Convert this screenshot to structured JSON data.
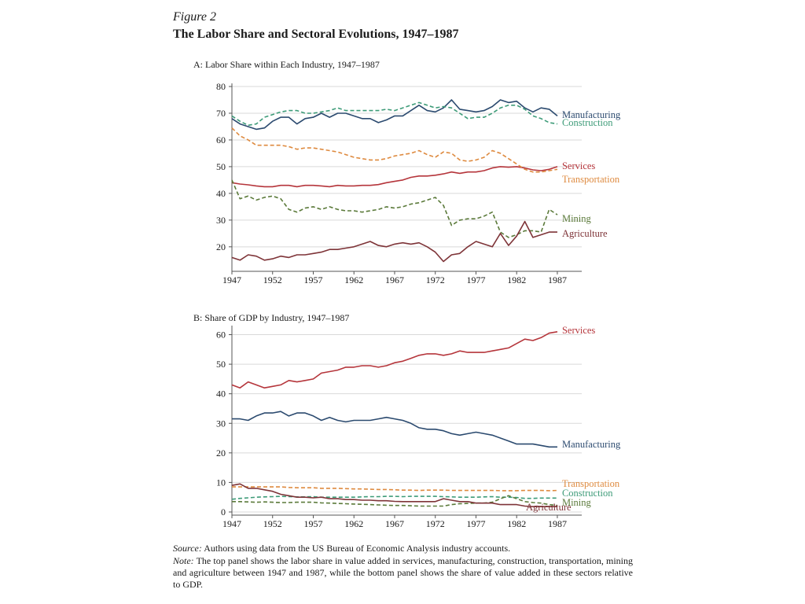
{
  "figure_label": "Figure 2",
  "figure_title": "The Labor Share and Sectoral Evolutions, 1947–1987",
  "source": {
    "label": "Source:",
    "text": " Authors using data from the US Bureau of Economic Analysis industry accounts."
  },
  "note": {
    "label": "Note:",
    "text": " The top panel shows the labor share in value added in services, manufacturing, construction, transportation, mining and agriculture between 1947 and 1987, while the bottom panel shows the share of value added in these sectors relative to GDP."
  },
  "colors": {
    "manufacturing": "#2b4a6f",
    "construction": "#3d9b78",
    "services": "#b5353b",
    "transportation": "#de8a3f",
    "mining": "#5b7a3a",
    "agriculture": "#7e3438",
    "axis": "#555555",
    "grid": "#d9d9d9"
  },
  "chart_data": [
    {
      "type": "line",
      "title": "A: Labor Share within Each Industry, 1947–1987",
      "xlabel": "",
      "ylabel": "",
      "xlim": [
        1947,
        1990
      ],
      "ylim": [
        12,
        80
      ],
      "xticks": [
        1947,
        1952,
        1957,
        1962,
        1967,
        1972,
        1977,
        1982,
        1987
      ],
      "yticks": [
        20,
        30,
        40,
        50,
        60,
        70,
        80
      ],
      "grid": "horizontal",
      "x": [
        1947,
        1948,
        1949,
        1950,
        1951,
        1952,
        1953,
        1954,
        1955,
        1956,
        1957,
        1958,
        1959,
        1960,
        1961,
        1962,
        1963,
        1964,
        1965,
        1966,
        1967,
        1968,
        1969,
        1970,
        1971,
        1972,
        1973,
        1974,
        1975,
        1976,
        1977,
        1978,
        1979,
        1980,
        1981,
        1982,
        1983,
        1984,
        1985,
        1986,
        1987
      ],
      "series": [
        {
          "name": "Manufacturing",
          "key": "manufacturing",
          "dash": false,
          "values": [
            68,
            66,
            65,
            64,
            64.5,
            67,
            68.5,
            68.5,
            66,
            68,
            68.5,
            70,
            68.5,
            70,
            70,
            69,
            68,
            68,
            66.5,
            67.5,
            69,
            69,
            71,
            73,
            71,
            70.5,
            72,
            75,
            71.5,
            71,
            70.5,
            71,
            72.5,
            75,
            74,
            74.5,
            72,
            70.5,
            72,
            71.5,
            69
          ]
        },
        {
          "name": "Construction",
          "key": "construction",
          "dash": true,
          "values": [
            69,
            67,
            65.5,
            66,
            68.5,
            69.5,
            70.5,
            71,
            71,
            70,
            70,
            70.5,
            71,
            72,
            71,
            71,
            71,
            71,
            71,
            71.5,
            71,
            72,
            73,
            74,
            73,
            72,
            72.5,
            72,
            70,
            68,
            68.5,
            68.5,
            70,
            72,
            73,
            73,
            71.5,
            69,
            68,
            66.5,
            66
          ]
        },
        {
          "name": "Services",
          "key": "services",
          "dash": false,
          "values": [
            44,
            43.5,
            43.2,
            42.8,
            42.5,
            42.5,
            43,
            43,
            42.5,
            43,
            43,
            42.8,
            42.5,
            43,
            42.8,
            42.8,
            43,
            43,
            43.3,
            44,
            44.5,
            45,
            46,
            46.5,
            46.5,
            46.8,
            47.3,
            48,
            47.5,
            48,
            48,
            48.5,
            49.5,
            50,
            49.8,
            50,
            49.5,
            48.8,
            48.5,
            49,
            50
          ]
        },
        {
          "name": "Transportation",
          "key": "transportation",
          "dash": true,
          "values": [
            64.5,
            61.5,
            60,
            58,
            58,
            58,
            58,
            57.5,
            56.5,
            57,
            57,
            56.5,
            56,
            55.5,
            54.5,
            53.5,
            53,
            52.5,
            52.5,
            53,
            54,
            54.5,
            55,
            56,
            54.5,
            53.5,
            55.5,
            55,
            52.5,
            52,
            52.5,
            53.5,
            56,
            55,
            53,
            51,
            49,
            48,
            48,
            48.5,
            49
          ]
        },
        {
          "name": "Mining",
          "key": "mining",
          "dash": true,
          "values": [
            45,
            38,
            39,
            37.5,
            38.5,
            39,
            38,
            34,
            33,
            34.5,
            35,
            34,
            35,
            34,
            33.5,
            33.5,
            33,
            33.5,
            34,
            35,
            34.5,
            35,
            36,
            36.5,
            37.5,
            38.5,
            35.5,
            28,
            30,
            30.5,
            30.5,
            31.5,
            33,
            25.5,
            23.5,
            24.5,
            26,
            26,
            25.5,
            34,
            32
          ]
        },
        {
          "name": "Agriculture",
          "key": "agriculture",
          "dash": false,
          "values": [
            16,
            15,
            17,
            16.5,
            15,
            15.5,
            16.5,
            16,
            17,
            17,
            17.5,
            18,
            19,
            19,
            19.5,
            20,
            21,
            22,
            20.5,
            20,
            21,
            21.5,
            21,
            21.5,
            20,
            18,
            14.5,
            17,
            17.5,
            20,
            22,
            21,
            20,
            25,
            20.5,
            24,
            29.5,
            23.5,
            24.5,
            25.5,
            25.5
          ]
        }
      ]
    },
    {
      "type": "line",
      "title": "B: Share of GDP by Industry, 1947–1987",
      "xlabel": "",
      "ylabel": "",
      "xlim": [
        1947,
        1990
      ],
      "ylim": [
        0,
        62
      ],
      "xticks": [
        1947,
        1952,
        1957,
        1962,
        1967,
        1972,
        1977,
        1982,
        1987
      ],
      "yticks": [
        0,
        10,
        20,
        30,
        40,
        50,
        60
      ],
      "grid": "horizontal",
      "x": [
        1947,
        1948,
        1949,
        1950,
        1951,
        1952,
        1953,
        1954,
        1955,
        1956,
        1957,
        1958,
        1959,
        1960,
        1961,
        1962,
        1963,
        1964,
        1965,
        1966,
        1967,
        1968,
        1969,
        1970,
        1971,
        1972,
        1973,
        1974,
        1975,
        1976,
        1977,
        1978,
        1979,
        1980,
        1981,
        1982,
        1983,
        1984,
        1985,
        1986,
        1987
      ],
      "series": [
        {
          "name": "Services",
          "key": "services",
          "dash": false,
          "values": [
            43,
            42,
            44,
            43,
            42,
            42.5,
            43,
            44.5,
            44,
            44.5,
            45,
            47,
            47.5,
            48,
            49,
            49,
            49.5,
            49.5,
            49,
            49.5,
            50.5,
            51,
            52,
            53,
            53.5,
            53.5,
            53,
            53.5,
            54.5,
            54,
            54,
            54,
            54.5,
            55,
            55.5,
            57,
            58.5,
            58,
            59,
            60.5,
            61
          ]
        },
        {
          "name": "Manufacturing",
          "key": "manufacturing",
          "dash": false,
          "values": [
            31.5,
            31.5,
            31,
            32.5,
            33.5,
            33.5,
            34,
            32.5,
            33.5,
            33.5,
            32.5,
            31,
            32,
            31,
            30.5,
            31,
            31,
            31,
            31.5,
            32,
            31.5,
            31,
            30,
            28.5,
            28,
            28,
            27.5,
            26.5,
            26,
            26.5,
            27,
            26.5,
            26,
            25,
            24,
            23,
            23,
            23,
            22.5,
            22,
            22
          ]
        },
        {
          "name": "Transportation",
          "key": "transportation",
          "dash": true,
          "values": [
            8.5,
            8.5,
            8.5,
            8.5,
            8.5,
            8.5,
            8.5,
            8.3,
            8.2,
            8.2,
            8.2,
            8,
            8,
            8,
            7.9,
            7.8,
            7.8,
            7.7,
            7.6,
            7.6,
            7.5,
            7.4,
            7.4,
            7.3,
            7.4,
            7.4,
            7.4,
            7.3,
            7.3,
            7.3,
            7.3,
            7.3,
            7.3,
            7.2,
            7.2,
            7.2,
            7.3,
            7.3,
            7.3,
            7.2,
            7.3
          ]
        },
        {
          "name": "Construction",
          "key": "construction",
          "dash": true,
          "values": [
            4.3,
            4.6,
            4.8,
            5,
            5.1,
            5.2,
            5.3,
            5.2,
            5.1,
            5.1,
            5.2,
            5,
            5,
            5,
            5,
            5,
            5.1,
            5.2,
            5.2,
            5.3,
            5.3,
            5.2,
            5.3,
            5.3,
            5.3,
            5.3,
            5.2,
            5.1,
            5,
            5,
            5,
            5.1,
            5.2,
            5,
            5,
            4.9,
            4.6,
            4.6,
            4.7,
            4.7,
            4.7
          ]
        },
        {
          "name": "Mining",
          "key": "mining",
          "dash": true,
          "values": [
            3.5,
            3.5,
            3.4,
            3.3,
            3.4,
            3.3,
            3.2,
            3.2,
            3.3,
            3.3,
            3.3,
            3.1,
            3,
            2.9,
            2.8,
            2.7,
            2.6,
            2.5,
            2.4,
            2.3,
            2.2,
            2.2,
            2.1,
            2,
            2,
            2,
            2,
            2.5,
            2.8,
            2.9,
            3,
            3,
            3.3,
            4.5,
            5.5,
            4.5,
            3.5,
            3.2,
            3,
            2.5,
            2.2
          ]
        },
        {
          "name": "Agriculture",
          "key": "agriculture",
          "dash": false,
          "values": [
            9,
            9.5,
            8,
            8,
            7.5,
            7,
            6,
            5.5,
            5,
            5,
            4.8,
            5,
            4.5,
            4.5,
            4.2,
            4.2,
            4,
            4,
            3.8,
            3.8,
            3.6,
            3.5,
            3.5,
            3.5,
            3.5,
            3.5,
            4.5,
            4,
            3.5,
            3.5,
            3,
            3,
            3,
            2.5,
            2.5,
            2.5,
            2,
            1.8,
            1.8,
            1.8,
            1.8
          ]
        }
      ]
    }
  ]
}
